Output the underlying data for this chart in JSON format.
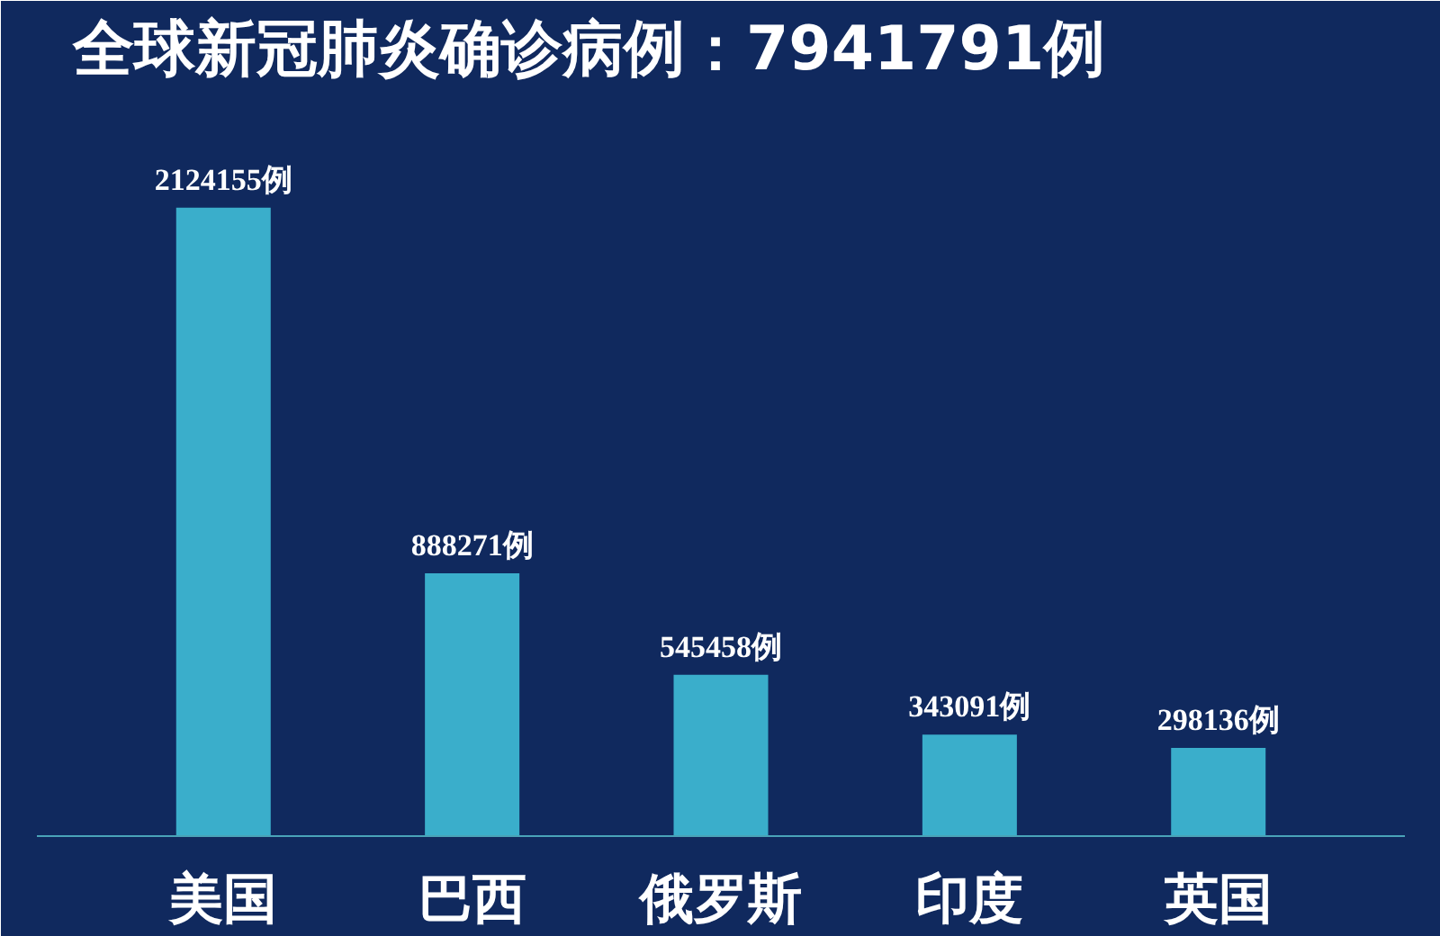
{
  "chart_data": {
    "type": "bar",
    "title": "全球新冠肺炎确诊病例：7941791例",
    "categories": [
      "美国",
      "巴西",
      "俄罗斯",
      "印度",
      "英国"
    ],
    "values": [
      2124155,
      888271,
      545458,
      343091,
      298136
    ],
    "value_labels": [
      "2124155例",
      "888271例",
      "545458例",
      "343091例",
      "298136例"
    ],
    "color": "#3aaecb"
  }
}
